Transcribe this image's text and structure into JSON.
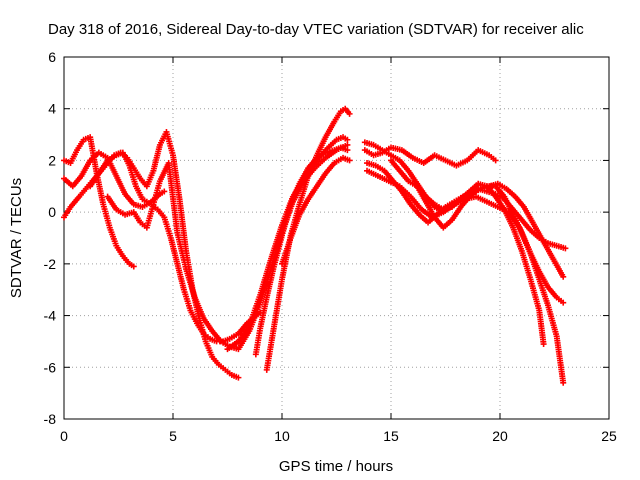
{
  "chart_data": {
    "type": "scatter",
    "title": "Day 318 of 2016, Sidereal Day-to-day VTEC variation (SDTVAR) for receiver alic",
    "xlabel": "GPS time / hours",
    "ylabel": "SDTVAR / TECUs",
    "xlim": [
      0,
      25
    ],
    "ylim": [
      -8,
      6
    ],
    "xticks": [
      0,
      5,
      10,
      15,
      20,
      25
    ],
    "yticks": [
      -8,
      -6,
      -4,
      -2,
      0,
      2,
      4,
      6
    ],
    "grid": true,
    "marker": "+",
    "color": "#ff0000",
    "series": [
      {
        "name": "track-1",
        "x": [
          0.0,
          0.3,
          0.7,
          1.0,
          1.3,
          1.7,
          2.0,
          2.3,
          2.6,
          2.9,
          3.2,
          3.5,
          3.8,
          4.1,
          4.4,
          4.7,
          5.0,
          5.3,
          5.6,
          5.9,
          6.2,
          6.5,
          6.8,
          7.1,
          7.4,
          7.7,
          8.0
        ],
        "y": [
          -0.2,
          0.2,
          0.6,
          0.9,
          1.2,
          1.6,
          1.9,
          2.2,
          2.3,
          2.1,
          1.7,
          1.3,
          1.0,
          1.6,
          2.6,
          3.1,
          2.2,
          0.5,
          -1.5,
          -3.0,
          -4.1,
          -5.0,
          -5.6,
          -5.9,
          -6.1,
          -6.3,
          -6.4
        ]
      },
      {
        "name": "track-2",
        "x": [
          0.0,
          0.3,
          0.6,
          0.9,
          1.2,
          1.5,
          1.8,
          2.1,
          2.4,
          2.7,
          3.0,
          3.2
        ],
        "y": [
          2.0,
          1.9,
          2.4,
          2.8,
          2.9,
          1.5,
          0.3,
          -0.6,
          -1.3,
          -1.7,
          -2.0,
          -2.1
        ]
      },
      {
        "name": "track-3",
        "x": [
          0.0,
          0.4,
          0.8,
          1.2,
          1.6,
          2.0,
          2.4,
          2.8,
          3.2,
          3.6,
          4.0,
          4.4,
          4.6
        ],
        "y": [
          1.3,
          1.0,
          1.4,
          2.0,
          2.3,
          2.1,
          1.4,
          0.7,
          0.3,
          0.2,
          0.4,
          0.7,
          0.8
        ]
      },
      {
        "name": "track-4",
        "x": [
          1.2,
          1.6,
          2.0,
          2.4,
          2.7,
          3.0,
          3.3,
          3.6,
          4.0,
          4.3,
          4.6,
          4.9,
          5.2,
          5.5,
          5.8,
          6.1,
          6.4,
          6.7,
          7.0,
          7.3,
          7.6,
          8.0,
          8.4,
          8.8,
          9.0
        ],
        "y": [
          1.0,
          1.5,
          2.0,
          2.2,
          2.3,
          1.8,
          1.0,
          0.5,
          0.3,
          0.1,
          -0.2,
          -1.0,
          -2.0,
          -3.0,
          -3.8,
          -4.3,
          -4.7,
          -4.9,
          -5.0,
          -5.0,
          -4.9,
          -4.7,
          -4.3,
          -4.0,
          -3.9
        ]
      },
      {
        "name": "track-5",
        "x": [
          2.0,
          2.4,
          2.8,
          3.2,
          3.5,
          3.8,
          4.1,
          4.4,
          4.8,
          5.2,
          5.6,
          6.0,
          6.4,
          6.8,
          7.2,
          7.6,
          8.0,
          8.5,
          9.0,
          9.5,
          10.0,
          10.5,
          11.0,
          11.5,
          12.0,
          12.5,
          13.0
        ],
        "y": [
          0.6,
          0.1,
          -0.1,
          0.0,
          -0.4,
          -0.6,
          0.3,
          1.2,
          1.9,
          -0.8,
          -2.2,
          -3.3,
          -4.1,
          -4.6,
          -5.0,
          -5.2,
          -5.3,
          -4.6,
          -3.5,
          -2.2,
          -0.8,
          0.4,
          1.2,
          1.7,
          2.1,
          2.4,
          2.6
        ]
      },
      {
        "name": "track-6",
        "x": [
          7.5,
          8.0,
          8.5,
          9.0,
          9.5,
          10.0,
          10.5,
          11.0,
          11.5,
          12.0,
          12.5,
          12.8,
          13.0
        ],
        "y": [
          -5.3,
          -5.0,
          -4.4,
          -3.2,
          -1.8,
          -0.5,
          0.6,
          1.3,
          1.9,
          2.4,
          2.8,
          2.9,
          2.8
        ]
      },
      {
        "name": "track-7",
        "x": [
          8.8,
          9.0,
          9.3,
          9.6,
          10.0,
          10.4,
          10.8,
          11.2,
          11.6,
          12.0,
          12.4,
          12.7,
          13.0
        ],
        "y": [
          -5.5,
          -4.5,
          -3.3,
          -2.2,
          -0.9,
          0.3,
          1.1,
          1.7,
          2.1,
          2.3,
          2.4,
          2.5,
          2.4
        ]
      },
      {
        "name": "track-8",
        "x": [
          9.3,
          9.6,
          10.0,
          10.4,
          10.8,
          11.2,
          11.6,
          12.0,
          12.4,
          12.7,
          12.9,
          13.1
        ],
        "y": [
          -6.1,
          -4.6,
          -2.6,
          -0.9,
          0.3,
          1.4,
          2.2,
          2.9,
          3.5,
          3.9,
          4.0,
          3.8
        ]
      },
      {
        "name": "track-9",
        "x": [
          10.0,
          10.4,
          10.8,
          11.2,
          11.6,
          12.0,
          12.4,
          12.8,
          13.1
        ],
        "y": [
          -2.0,
          -1.0,
          -0.1,
          0.5,
          1.0,
          1.5,
          1.9,
          2.1,
          2.0
        ]
      },
      {
        "name": "track-10",
        "x": [
          13.8,
          14.2,
          14.6,
          15.0,
          15.4,
          15.8,
          16.2,
          16.6,
          17.0,
          17.4,
          17.8,
          18.2,
          18.6,
          19.0,
          19.4,
          19.8,
          20.2,
          20.6,
          21.0,
          21.4,
          21.8,
          22.2,
          22.6,
          23.0
        ],
        "y": [
          2.7,
          2.6,
          2.4,
          2.2,
          2.0,
          1.6,
          1.1,
          0.6,
          0.3,
          0.1,
          0.2,
          0.5,
          0.8,
          0.9,
          0.8,
          0.7,
          0.5,
          0.1,
          -0.3,
          -0.7,
          -1.0,
          -1.2,
          -1.3,
          -1.4
        ]
      },
      {
        "name": "track-11",
        "x": [
          13.8,
          14.2,
          14.6,
          15.0,
          15.5,
          16.0,
          16.5,
          17.0,
          17.5,
          18.0,
          18.5,
          19.0,
          19.5,
          19.8
        ],
        "y": [
          2.4,
          2.2,
          2.3,
          2.5,
          2.4,
          2.1,
          1.9,
          2.2,
          2.0,
          1.8,
          2.0,
          2.4,
          2.2,
          2.0
        ]
      },
      {
        "name": "track-12",
        "x": [
          13.9,
          14.3,
          14.7,
          15.1,
          15.5,
          15.9,
          16.3,
          16.7,
          17.1,
          17.5,
          17.9,
          18.3,
          18.7,
          19.1,
          19.5,
          19.9,
          20.3,
          20.7,
          21.1,
          21.5,
          21.9,
          22.3,
          22.7,
          22.9
        ],
        "y": [
          1.9,
          1.8,
          1.6,
          1.2,
          0.8,
          0.3,
          -0.1,
          -0.4,
          -0.1,
          0.2,
          0.4,
          0.6,
          0.7,
          0.9,
          1.0,
          1.1,
          0.9,
          0.6,
          0.2,
          -0.4,
          -1.0,
          -1.6,
          -2.2,
          -2.5
        ]
      },
      {
        "name": "track-13",
        "x": [
          13.9,
          14.4,
          14.9,
          15.4,
          15.9,
          16.4,
          16.9,
          17.4,
          17.9,
          18.4,
          18.9,
          19.4,
          19.9,
          20.4,
          20.9,
          21.4,
          21.8,
          22.2,
          22.6,
          22.9
        ],
        "y": [
          1.6,
          1.4,
          1.2,
          1.0,
          0.6,
          0.1,
          -0.2,
          0.0,
          0.3,
          0.5,
          0.6,
          0.4,
          0.2,
          0.0,
          -0.6,
          -1.6,
          -2.6,
          -3.6,
          -4.8,
          -6.6
        ]
      },
      {
        "name": "track-14",
        "x": [
          15.0,
          15.4,
          15.8,
          16.2,
          16.6,
          17.0,
          17.4,
          17.8,
          18.2,
          18.6,
          19.0,
          19.4,
          19.8,
          20.2,
          20.6,
          21.0,
          21.4,
          21.8,
          22.0
        ],
        "y": [
          2.0,
          1.6,
          1.2,
          1.0,
          0.6,
          0.2,
          0.0,
          0.3,
          0.5,
          0.8,
          1.1,
          1.0,
          0.6,
          0.1,
          -0.6,
          -1.5,
          -2.6,
          -3.8,
          -5.1
        ]
      },
      {
        "name": "track-15",
        "x": [
          16.2,
          16.6,
          17.0,
          17.4,
          17.8,
          18.2,
          18.6,
          19.0,
          19.4,
          19.8,
          20.2,
          20.6,
          21.0,
          21.4,
          21.8,
          22.2,
          22.6,
          22.9
        ],
        "y": [
          1.0,
          0.4,
          -0.2,
          -0.6,
          -0.3,
          0.2,
          0.6,
          0.9,
          1.0,
          1.0,
          0.6,
          -0.1,
          -0.8,
          -1.6,
          -2.3,
          -2.9,
          -3.3,
          -3.5
        ]
      }
    ]
  }
}
